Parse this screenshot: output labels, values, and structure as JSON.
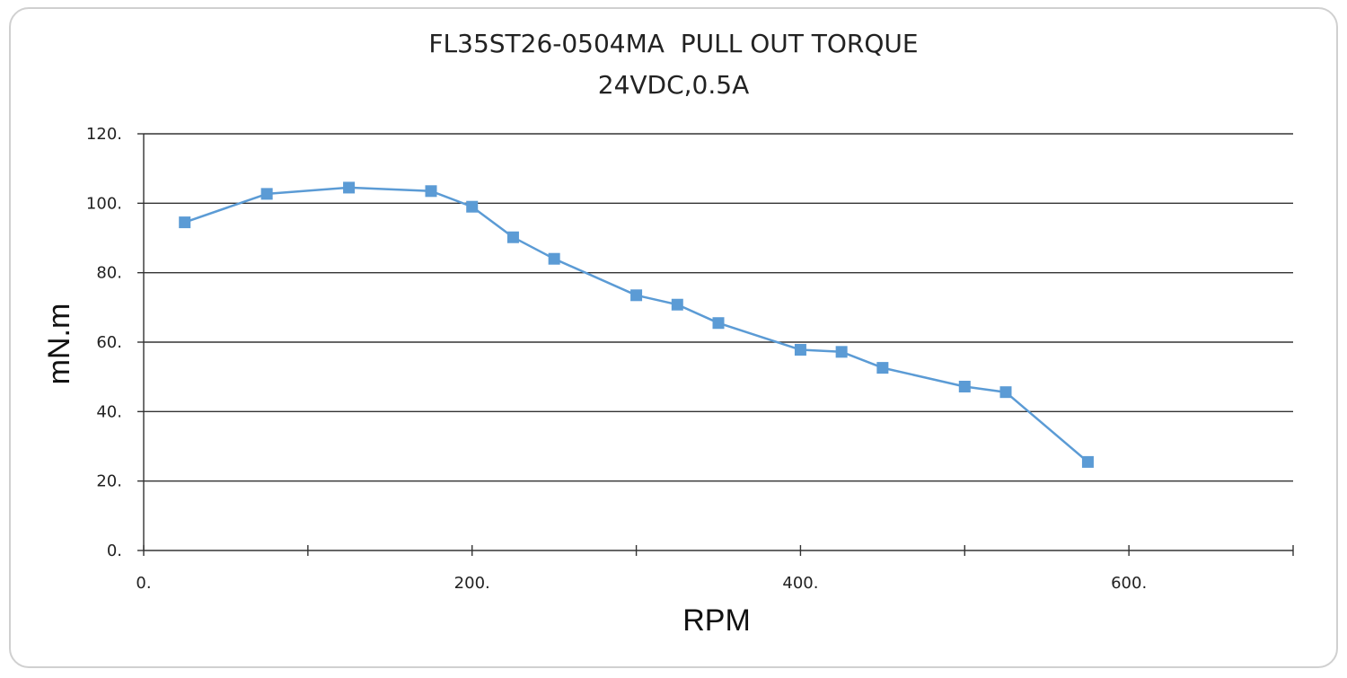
{
  "chart_data": {
    "type": "line",
    "title": "FL35ST26-0504MA  PULL OUT TORQUE",
    "subtitle": "24VDC,0.5A",
    "xlabel": "RPM",
    "ylabel": "mN.m",
    "xlim": [
      0,
      700
    ],
    "ylim": [
      0,
      120
    ],
    "x_ticks": [
      0,
      200,
      400,
      600
    ],
    "x_tick_labels": [
      "0.",
      "200.",
      "400.",
      "600."
    ],
    "x_minor_ticks": [
      100,
      300,
      500,
      700
    ],
    "y_ticks": [
      0,
      20,
      40,
      60,
      80,
      100,
      120
    ],
    "y_tick_labels": [
      "0.",
      "20.",
      "40.",
      "60.",
      "80.",
      "100.",
      "120."
    ],
    "grid": "horizontal",
    "marker": "square",
    "color": "#5b9bd5",
    "series": [
      {
        "x": [
          25,
          75,
          125,
          175,
          200,
          225,
          250,
          300,
          325,
          350,
          400,
          425,
          450,
          500,
          525,
          575
        ],
        "y": [
          94.5,
          102.7,
          104.5,
          103.5,
          99,
          90.2,
          84,
          73.5,
          70.8,
          65.5,
          57.8,
          57.2,
          52.6,
          47.2,
          45.6,
          25.5
        ]
      }
    ]
  }
}
